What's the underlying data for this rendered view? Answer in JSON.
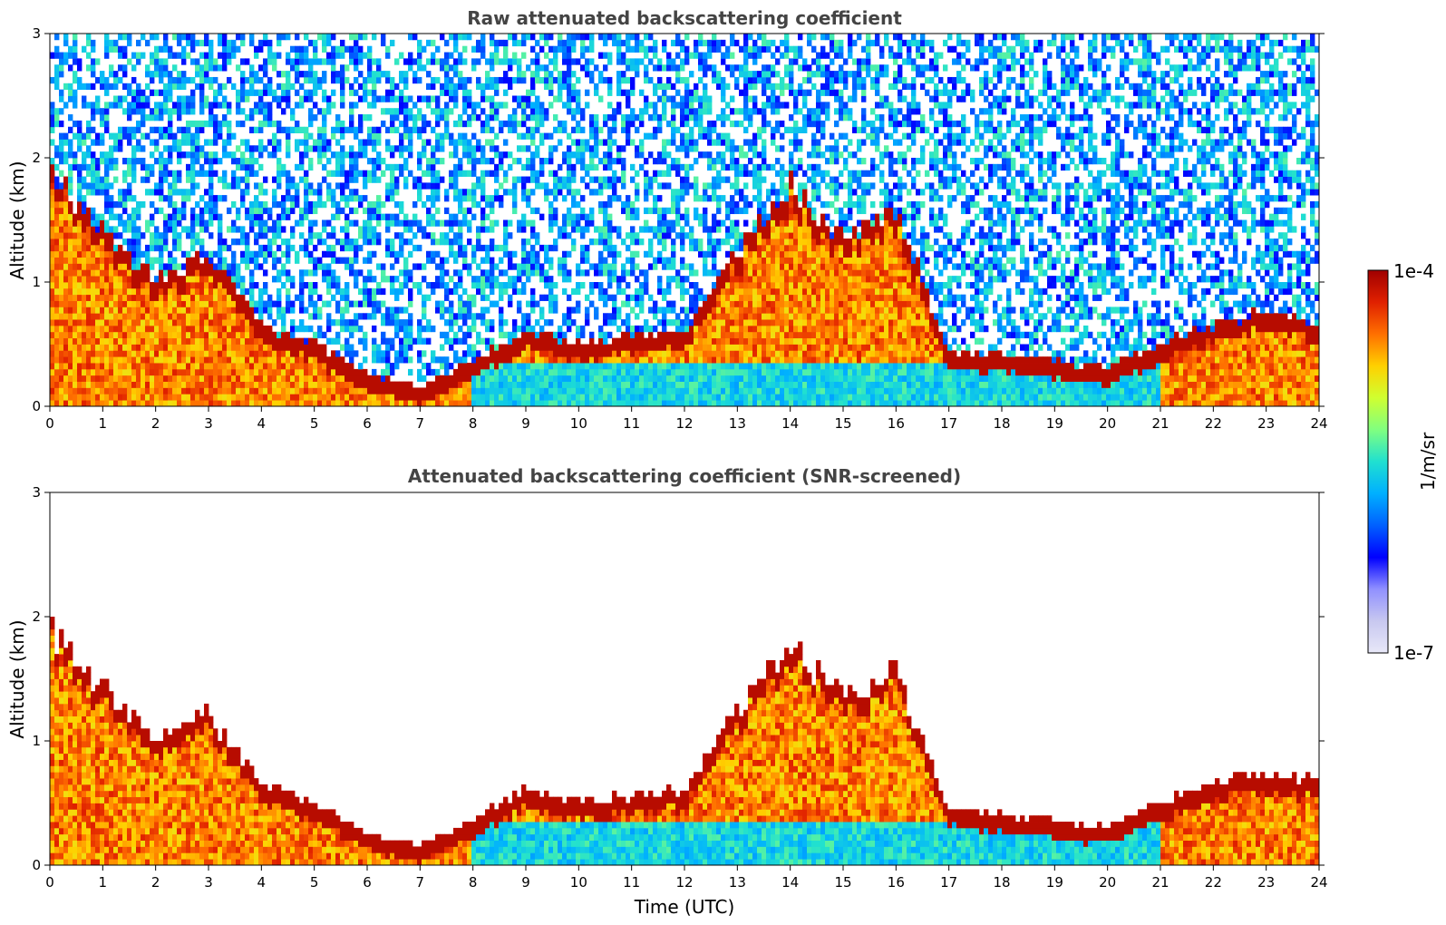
{
  "chart_data": [
    {
      "type": "heatmap",
      "title": "Raw attenuated backscattering coefficient",
      "xlabel": "",
      "ylabel": "Altitude (km)",
      "xlim": [
        0,
        24
      ],
      "ylim": [
        0,
        3
      ],
      "x_ticks": [
        "0",
        "1",
        "2",
        "3",
        "4",
        "5",
        "6",
        "7",
        "8",
        "9",
        "10",
        "11",
        "12",
        "13",
        "14",
        "15",
        "16",
        "17",
        "18",
        "19",
        "20",
        "21",
        "22",
        "23",
        "24"
      ],
      "y_ticks": [
        "0",
        "1",
        "2",
        "3"
      ],
      "boundary_layer_top_km": {
        "x": [
          0,
          1,
          2,
          3,
          4,
          5,
          6,
          7,
          8,
          9,
          10,
          11,
          12,
          13,
          14,
          15,
          16,
          17,
          18,
          19,
          20,
          21,
          22,
          23,
          24
        ],
        "y": [
          1.85,
          1.35,
          0.95,
          1.15,
          0.6,
          0.45,
          0.2,
          0.1,
          0.3,
          0.55,
          0.45,
          0.5,
          0.55,
          1.2,
          1.7,
          1.3,
          1.5,
          0.4,
          0.35,
          0.3,
          0.25,
          0.45,
          0.6,
          0.7,
          0.6
        ]
      },
      "noise_present": true
    },
    {
      "type": "heatmap",
      "title": "Attenuated backscattering coefficient (SNR-screened)",
      "xlabel": "Time (UTC)",
      "ylabel": "Altitude (km)",
      "xlim": [
        0,
        24
      ],
      "ylim": [
        0,
        3
      ],
      "x_ticks": [
        "0",
        "1",
        "2",
        "3",
        "4",
        "5",
        "6",
        "7",
        "8",
        "9",
        "10",
        "11",
        "12",
        "13",
        "14",
        "15",
        "16",
        "17",
        "18",
        "19",
        "20",
        "21",
        "22",
        "23",
        "24"
      ],
      "y_ticks": [
        "0",
        "1",
        "2",
        "3"
      ],
      "boundary_layer_top_km": {
        "x": [
          0,
          1,
          2,
          3,
          4,
          5,
          6,
          7,
          8,
          9,
          10,
          11,
          12,
          13,
          14,
          15,
          16,
          17,
          18,
          19,
          20,
          21,
          22,
          23,
          24
        ],
        "y": [
          1.85,
          1.35,
          0.95,
          1.15,
          0.6,
          0.45,
          0.2,
          0.1,
          0.3,
          0.55,
          0.45,
          0.5,
          0.55,
          1.2,
          1.7,
          1.3,
          1.5,
          0.4,
          0.35,
          0.3,
          0.25,
          0.45,
          0.6,
          0.7,
          0.6
        ]
      },
      "noise_present": false
    }
  ],
  "colorbar": {
    "max_label": "1e-4",
    "min_label": "1e-7",
    "unit_label": "1/m/sr",
    "colors": [
      "#e8e8f8",
      "#c8c8f0",
      "#9090ff",
      "#0000ff",
      "#0060ff",
      "#00b0ff",
      "#20e0d0",
      "#80ff80",
      "#d0ff30",
      "#ffd000",
      "#ff7000",
      "#e02000",
      "#a00000"
    ]
  }
}
